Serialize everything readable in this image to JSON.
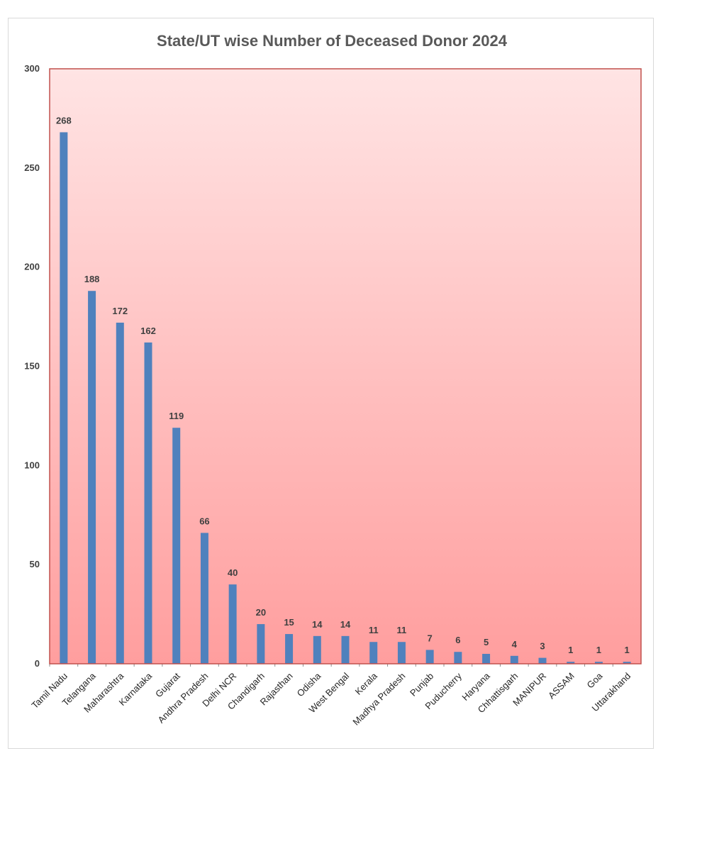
{
  "chart_data": {
    "type": "bar",
    "title": "State/UT wise Number of Deceased Donor 2024",
    "xlabel": "",
    "ylabel": "",
    "ylim": [
      0,
      300
    ],
    "yticks": [
      0,
      50,
      100,
      150,
      200,
      250,
      300
    ],
    "categories": [
      "Tamil Nadu",
      "Telangana",
      "Maharashtra",
      "Karnataka",
      "Gujarat",
      "Andhra Pradesh",
      "Delhi NCR",
      "Chandigarh",
      "Rajasthan",
      "Odisha",
      "West Bengal",
      "Kerala",
      "Madhya Pradesh",
      "Punjab",
      "Puducherry",
      "Haryana",
      "Chhattisgarh",
      "MANIPUR",
      "ASSAM",
      "Goa",
      "Uttarakhand"
    ],
    "series": [
      {
        "values": [
          268,
          188,
          172,
          162,
          119,
          66,
          40,
          20,
          15,
          14,
          14,
          11,
          11,
          7,
          6,
          5,
          4,
          3,
          1,
          1,
          1
        ]
      }
    ],
    "grid": false,
    "legend": "none",
    "colors": {
      "bar": "#4f81bd",
      "plot_border": "#c0504d",
      "plot_gradient_top": "#ffe4e4",
      "plot_gradient_bottom": "#ff9e9e"
    }
  }
}
